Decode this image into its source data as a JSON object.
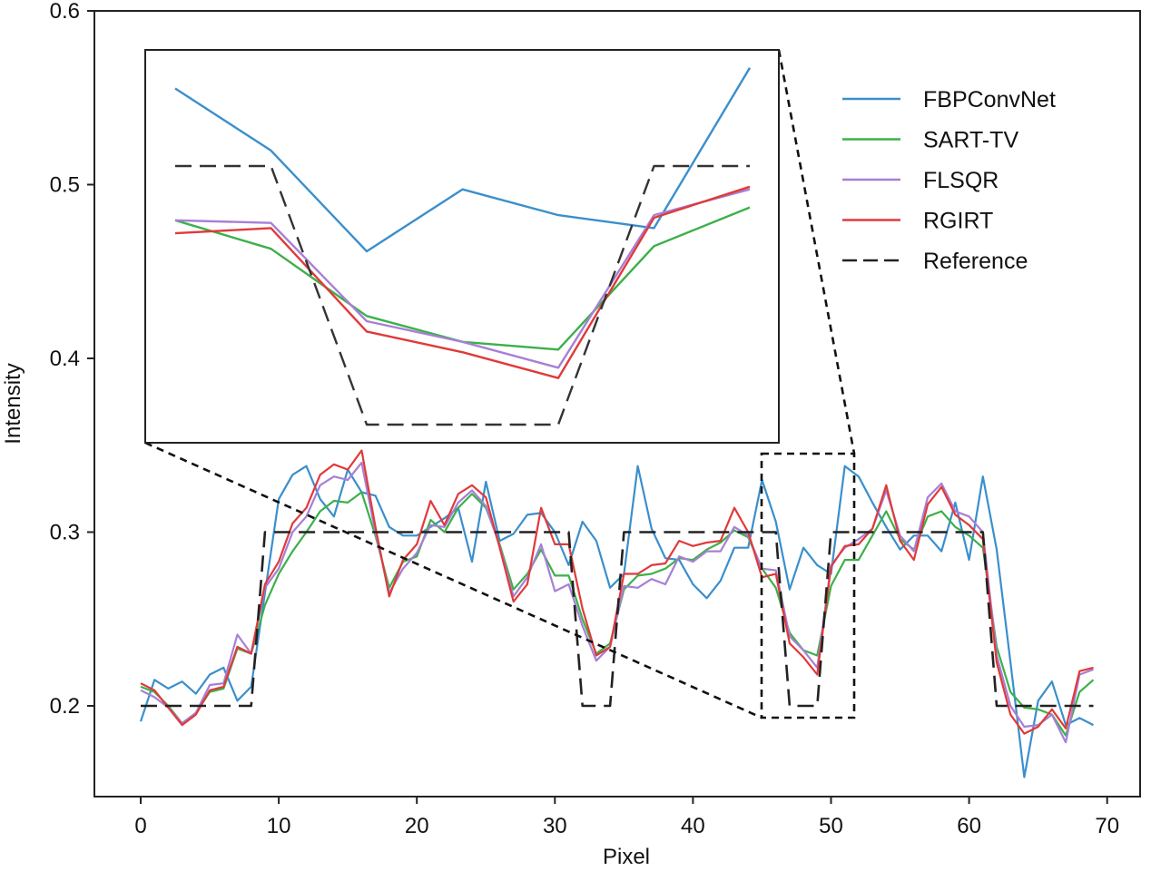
{
  "chart_data": {
    "type": "line",
    "title": "",
    "xlabel": "Pixel",
    "ylabel": "Intensity",
    "xlim": [
      -2.5,
      72.5
    ],
    "ylim": [
      0.15,
      0.6
    ],
    "xticks": [
      0,
      10,
      20,
      30,
      40,
      50,
      60,
      70
    ],
    "yticks": [
      0.2,
      0.3,
      0.4,
      0.5,
      0.6
    ],
    "xtick_labels": [
      "0",
      "10",
      "20",
      "30",
      "40",
      "50",
      "60",
      "70"
    ],
    "ytick_labels": [
      "0.2",
      "0.3",
      "0.4",
      "0.5",
      "0.6"
    ],
    "grid": false,
    "legend_position": "upper right",
    "x": [
      0,
      1,
      2,
      3,
      4,
      5,
      6,
      7,
      8,
      9,
      10,
      11,
      12,
      13,
      14,
      15,
      16,
      17,
      18,
      19,
      20,
      21,
      22,
      23,
      24,
      25,
      26,
      27,
      28,
      29,
      30,
      31,
      32,
      33,
      34,
      35,
      36,
      37,
      38,
      39,
      40,
      41,
      42,
      43,
      44,
      45,
      46,
      47,
      48,
      49,
      50,
      51,
      52,
      53,
      54,
      55,
      56,
      57,
      58,
      59,
      60,
      61,
      62,
      63,
      64,
      65,
      66,
      67,
      68,
      69
    ],
    "series": [
      {
        "name": "FBPConvNet",
        "color": "#3a8fcc",
        "style": "solid",
        "values": [
          0.191,
          0.215,
          0.21,
          0.214,
          0.207,
          0.218,
          0.222,
          0.203,
          0.211,
          0.265,
          0.319,
          0.333,
          0.338,
          0.319,
          0.309,
          0.336,
          0.323,
          0.321,
          0.303,
          0.298,
          0.298,
          0.303,
          0.308,
          0.314,
          0.283,
          0.329,
          0.295,
          0.299,
          0.31,
          0.311,
          0.3,
          0.281,
          0.306,
          0.295,
          0.268,
          0.276,
          0.338,
          0.302,
          0.285,
          0.284,
          0.27,
          0.262,
          0.272,
          0.291,
          0.291,
          0.33,
          0.306,
          0.267,
          0.291,
          0.281,
          0.276,
          0.338,
          0.332,
          0.317,
          0.303,
          0.29,
          0.298,
          0.298,
          0.289,
          0.317,
          0.284,
          0.332,
          0.29,
          0.225,
          0.159,
          0.203,
          0.214,
          0.189,
          0.193,
          0.189
        ]
      },
      {
        "name": "SART-TV",
        "color": "#3cb04a",
        "style": "solid",
        "values": [
          0.211,
          0.208,
          0.2,
          0.19,
          0.196,
          0.208,
          0.21,
          0.233,
          0.23,
          0.258,
          0.276,
          0.289,
          0.3,
          0.312,
          0.318,
          0.317,
          0.323,
          0.298,
          0.268,
          0.283,
          0.286,
          0.307,
          0.3,
          0.314,
          0.322,
          0.314,
          0.293,
          0.267,
          0.276,
          0.29,
          0.275,
          0.275,
          0.25,
          0.23,
          0.236,
          0.267,
          0.275,
          0.276,
          0.279,
          0.285,
          0.284,
          0.29,
          0.294,
          0.301,
          0.297,
          0.279,
          0.268,
          0.242,
          0.232,
          0.229,
          0.269,
          0.284,
          0.284,
          0.298,
          0.312,
          0.296,
          0.29,
          0.309,
          0.312,
          0.303,
          0.298,
          0.291,
          0.234,
          0.208,
          0.199,
          0.198,
          0.195,
          0.183,
          0.208,
          0.215
        ]
      },
      {
        "name": "FLSQR",
        "color": "#a77fd6",
        "style": "solid",
        "values": [
          0.209,
          0.205,
          0.199,
          0.19,
          0.196,
          0.212,
          0.213,
          0.241,
          0.23,
          0.268,
          0.279,
          0.3,
          0.309,
          0.327,
          0.332,
          0.33,
          0.34,
          0.3,
          0.265,
          0.279,
          0.288,
          0.304,
          0.303,
          0.317,
          0.324,
          0.315,
          0.292,
          0.263,
          0.274,
          0.293,
          0.266,
          0.27,
          0.246,
          0.226,
          0.234,
          0.269,
          0.268,
          0.273,
          0.27,
          0.286,
          0.283,
          0.289,
          0.289,
          0.303,
          0.298,
          0.279,
          0.278,
          0.24,
          0.232,
          0.222,
          0.281,
          0.291,
          0.296,
          0.302,
          0.324,
          0.298,
          0.289,
          0.32,
          0.328,
          0.312,
          0.309,
          0.3,
          0.229,
          0.2,
          0.188,
          0.189,
          0.195,
          0.179,
          0.218,
          0.221
        ]
      },
      {
        "name": "RGIRT",
        "color": "#e03a3a",
        "style": "solid",
        "values": [
          0.213,
          0.209,
          0.199,
          0.189,
          0.195,
          0.209,
          0.211,
          0.234,
          0.23,
          0.27,
          0.283,
          0.305,
          0.314,
          0.333,
          0.339,
          0.336,
          0.347,
          0.303,
          0.263,
          0.284,
          0.293,
          0.318,
          0.304,
          0.322,
          0.327,
          0.32,
          0.291,
          0.26,
          0.27,
          0.314,
          0.293,
          0.293,
          0.256,
          0.229,
          0.234,
          0.276,
          0.276,
          0.281,
          0.282,
          0.295,
          0.292,
          0.294,
          0.295,
          0.314,
          0.3,
          0.274,
          0.276,
          0.236,
          0.228,
          0.218,
          0.28,
          0.292,
          0.293,
          0.302,
          0.327,
          0.295,
          0.284,
          0.316,
          0.326,
          0.31,
          0.304,
          0.296,
          0.225,
          0.195,
          0.184,
          0.188,
          0.198,
          0.187,
          0.22,
          0.222
        ]
      },
      {
        "name": "Reference",
        "color": "#222222",
        "style": "dashed",
        "values": [
          0.2,
          0.2,
          0.2,
          0.2,
          0.2,
          0.2,
          0.2,
          0.2,
          0.2,
          0.3,
          0.3,
          0.3,
          0.3,
          0.3,
          0.3,
          0.3,
          0.3,
          0.3,
          0.3,
          0.3,
          0.3,
          0.3,
          0.3,
          0.3,
          0.3,
          0.3,
          0.3,
          0.3,
          0.3,
          0.3,
          0.3,
          0.3,
          0.2,
          0.2,
          0.2,
          0.3,
          0.3,
          0.3,
          0.3,
          0.3,
          0.3,
          0.3,
          0.3,
          0.3,
          0.3,
          0.3,
          0.3,
          0.2,
          0.2,
          0.2,
          0.3,
          0.3,
          0.3,
          0.3,
          0.3,
          0.3,
          0.3,
          0.3,
          0.3,
          0.3,
          0.3,
          0.3,
          0.2,
          0.2,
          0.2,
          0.2,
          0.2,
          0.2,
          0.2,
          0.2
        ]
      }
    ],
    "inset": {
      "description": "Zoomed view of pixels 45-51",
      "x_range": [
        45,
        51
      ],
      "y_range": [
        0.193,
        0.345
      ],
      "x": [
        45,
        46,
        47,
        48,
        49,
        50,
        51
      ],
      "series": [
        {
          "name": "FBPConvNet",
          "values": [
            0.33,
            0.306,
            0.267,
            0.291,
            0.281,
            0.276,
            0.338
          ]
        },
        {
          "name": "SART-TV",
          "values": [
            0.279,
            0.268,
            0.242,
            0.232,
            0.229,
            0.269,
            0.284
          ]
        },
        {
          "name": "FLSQR",
          "values": [
            0.279,
            0.278,
            0.24,
            0.232,
            0.222,
            0.281,
            0.291
          ]
        },
        {
          "name": "RGIRT",
          "values": [
            0.274,
            0.276,
            0.236,
            0.228,
            0.218,
            0.28,
            0.292
          ]
        },
        {
          "name": "Reference",
          "values": [
            0.3,
            0.3,
            0.2,
            0.2,
            0.2,
            0.3,
            0.3
          ]
        }
      ]
    },
    "legend": [
      {
        "label": "FBPConvNet",
        "color": "#3a8fcc",
        "style": "solid"
      },
      {
        "label": "SART-TV",
        "color": "#3cb04a",
        "style": "solid"
      },
      {
        "label": "FLSQR",
        "color": "#a77fd6",
        "style": "solid"
      },
      {
        "label": "RGIRT",
        "color": "#e03a3a",
        "style": "solid"
      },
      {
        "label": "Reference",
        "color": "#222222",
        "style": "dashed"
      }
    ]
  }
}
